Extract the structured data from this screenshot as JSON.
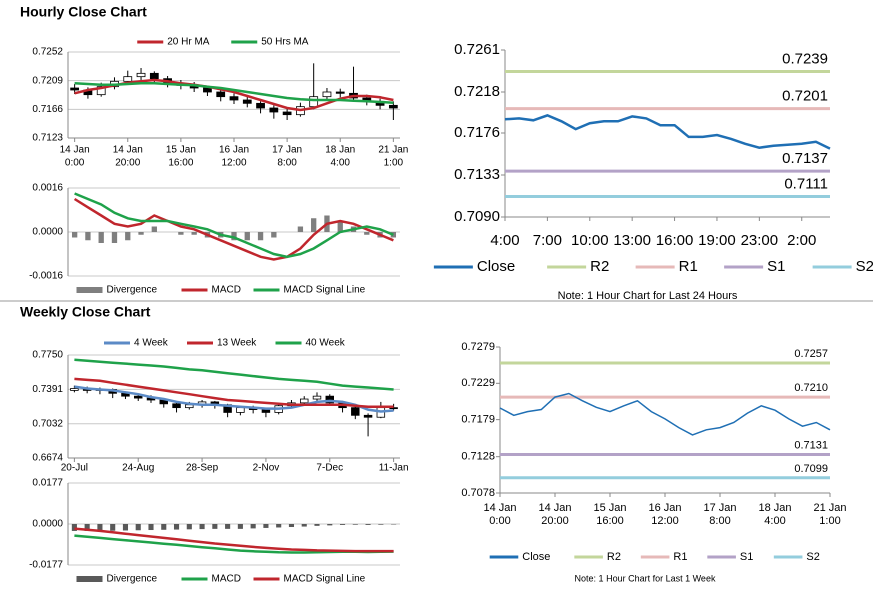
{
  "sections": [
    "Hourly Close Chart",
    "Weekly Close Chart"
  ],
  "chart_data": [
    {
      "type": "candlestick",
      "categories": [
        [
          "14 Jan",
          "0:00"
        ],
        null,
        null,
        null,
        [
          "14 Jan",
          "20:00"
        ],
        null,
        null,
        null,
        [
          "15 Jan",
          "16:00"
        ],
        null,
        null,
        null,
        [
          "16 Jan",
          "12:00"
        ],
        null,
        null,
        null,
        [
          "17 Jan",
          "8:00"
        ],
        null,
        null,
        null,
        [
          "18 Jan",
          "4:00"
        ],
        null,
        null,
        null,
        [
          "21 Jan",
          "1:00"
        ]
      ],
      "candles": [
        [
          0.7198,
          0.7204,
          0.7189,
          0.7195
        ],
        [
          0.7195,
          0.7199,
          0.7182,
          0.7188
        ],
        [
          0.7188,
          0.7206,
          0.7185,
          0.72
        ],
        [
          0.72,
          0.7214,
          0.7196,
          0.7208
        ],
        [
          0.7208,
          0.7224,
          0.7204,
          0.7215
        ],
        [
          0.7215,
          0.7228,
          0.721,
          0.722
        ],
        [
          0.722,
          0.7223,
          0.7206,
          0.7212
        ],
        [
          0.7212,
          0.7216,
          0.7199,
          0.7205
        ],
        [
          0.7205,
          0.721,
          0.7196,
          0.7202
        ],
        [
          0.7202,
          0.7207,
          0.7192,
          0.7198
        ],
        [
          0.7198,
          0.7201,
          0.7186,
          0.7192
        ],
        [
          0.7192,
          0.7196,
          0.7178,
          0.7185
        ],
        [
          0.7185,
          0.719,
          0.7174,
          0.718
        ],
        [
          0.718,
          0.7186,
          0.7169,
          0.7175
        ],
        [
          0.7175,
          0.7178,
          0.716,
          0.7168
        ],
        [
          0.7168,
          0.7172,
          0.7152,
          0.7162
        ],
        [
          0.7162,
          0.7168,
          0.715,
          0.7158
        ],
        [
          0.7158,
          0.7176,
          0.7155,
          0.717
        ],
        [
          0.717,
          0.7235,
          0.7166,
          0.7185
        ],
        [
          0.7185,
          0.7198,
          0.718,
          0.7192
        ],
        [
          0.7192,
          0.7197,
          0.7184,
          0.719
        ],
        [
          0.719,
          0.723,
          0.7178,
          0.7183
        ],
        [
          0.7183,
          0.7188,
          0.7172,
          0.7178
        ],
        [
          0.7178,
          0.7182,
          0.7166,
          0.7172
        ],
        [
          0.7172,
          0.7178,
          0.715,
          0.7168
        ]
      ],
      "series": [
        {
          "name": "20 Hr MA",
          "color": "#c0262d",
          "values": [
            0.719,
            0.7195,
            0.7198,
            0.7202,
            0.7206,
            0.7208,
            0.721,
            0.7208,
            0.7205,
            0.7203,
            0.72,
            0.7196,
            0.7192,
            0.7186,
            0.718,
            0.7174,
            0.7168,
            0.7165,
            0.7168,
            0.7175,
            0.7182,
            0.7186,
            0.7186,
            0.7184,
            0.718
          ]
        },
        {
          "name": "50 Hrs MA",
          "color": "#1fa24a",
          "values": [
            0.7205,
            0.7204,
            0.7203,
            0.7203,
            0.7204,
            0.7205,
            0.7205,
            0.7204,
            0.7203,
            0.7202,
            0.72,
            0.7198,
            0.7195,
            0.7192,
            0.7189,
            0.7186,
            0.7183,
            0.7181,
            0.718,
            0.718,
            0.718,
            0.7179,
            0.7178,
            0.7177,
            0.7176
          ]
        }
      ],
      "ylim": [
        0.7123,
        0.7252
      ],
      "yticks": [
        0.7123,
        0.7166,
        0.7209,
        0.7252
      ],
      "grid": true,
      "legend": "top"
    },
    {
      "type": "macd",
      "series": [
        {
          "name": "Divergence",
          "color": "#7f7f7f",
          "style": "bar",
          "values": [
            -0.0002,
            -0.0003,
            -0.0004,
            -0.0004,
            -0.0003,
            -0.0001,
            0.0002,
            0,
            -0.0001,
            -0.0001,
            -0.0002,
            -0.0002,
            -0.0003,
            -0.0003,
            -0.0003,
            -0.0002,
            0,
            0.0002,
            0.0005,
            0.0006,
            0.0004,
            0.0002,
            -0.0001,
            -0.0002,
            -0.0002
          ]
        },
        {
          "name": "MACD",
          "color": "#c0262d",
          "style": "line",
          "values": [
            0.0012,
            0.0009,
            0.0006,
            0.0003,
            0.0002,
            0.0003,
            0.0006,
            0.0004,
            0.0002,
            0.0001,
            -0.0001,
            -0.0003,
            -0.0005,
            -0.0007,
            -0.0009,
            -0.001,
            -0.0009,
            -0.0006,
            -0.0001,
            0.0003,
            0.0004,
            0.0003,
            0.0001,
            -0.0001,
            -0.0003
          ]
        },
        {
          "name": "MACD Signal Line",
          "color": "#1fa24a",
          "style": "line",
          "values": [
            0.0014,
            0.0012,
            0.001,
            0.0007,
            0.0005,
            0.0004,
            0.0004,
            0.0004,
            0.0003,
            0.0002,
            0.0001,
            -0.0001,
            -0.0002,
            -0.0004,
            -0.0006,
            -0.0008,
            -0.0009,
            -0.0008,
            -0.0006,
            -0.0003,
            0,
            0.0001,
            0.0002,
            0.0001,
            -0.0001
          ]
        }
      ],
      "ylim": [
        -0.0016,
        0.0016
      ],
      "yticks": [
        {
          "value": -0.0016,
          "label": "-0.0016"
        },
        {
          "value": 0,
          "label": "0.0000"
        },
        0.0016
      ],
      "grid": true,
      "legend": "bottom"
    },
    {
      "type": "line",
      "categories": [
        "4:00",
        null,
        null,
        "7:00",
        null,
        null,
        "10:00",
        null,
        null,
        "13:00",
        null,
        null,
        "16:00",
        null,
        null,
        "19:00",
        null,
        null,
        "23:00",
        null,
        null,
        "2:00",
        null,
        null
      ],
      "series": [
        {
          "name": "Close",
          "color": "#1f6fb4",
          "values": [
            0.719,
            0.7191,
            0.7189,
            0.7194,
            0.7188,
            0.718,
            0.7186,
            0.7188,
            0.7188,
            0.7193,
            0.7191,
            0.7184,
            0.7184,
            0.7172,
            0.7172,
            0.7174,
            0.717,
            0.7165,
            0.7161,
            0.7163,
            0.7164,
            0.7165,
            0.7167,
            0.716
          ]
        }
      ],
      "levels": [
        {
          "name": "R2",
          "color": "#c3d69b",
          "value": 0.7239,
          "value_label": "0.7239"
        },
        {
          "name": "R1",
          "color": "#e6b9b8",
          "value": 0.7201,
          "value_label": "0.7201"
        },
        {
          "name": "S1",
          "color": "#b3a2c7",
          "value": 0.7137,
          "value_label": "0.7137"
        },
        {
          "name": "S2",
          "color": "#93cddd",
          "value": 0.7111,
          "value_label": "0.7111"
        }
      ],
      "ylim": [
        0.709,
        0.7261
      ],
      "yticks": [
        {
          "value": 0.709,
          "label": "0.7090"
        },
        0.7133,
        0.7176,
        0.7218,
        0.7261
      ],
      "grid": false,
      "legend": "bottom",
      "note": "Note: 1 Hour Chart for Last 24 Hours"
    },
    {
      "type": "candlestick",
      "categories": [
        "20-Jul",
        null,
        null,
        null,
        null,
        "24-Aug",
        null,
        null,
        null,
        null,
        "28-Sep",
        null,
        null,
        null,
        null,
        "2-Nov",
        null,
        null,
        null,
        null,
        "7-Dec",
        null,
        null,
        null,
        null,
        "11-Jan"
      ],
      "candles": [
        [
          0.738,
          0.743,
          0.736,
          0.74
        ],
        [
          0.74,
          0.742,
          0.735,
          0.738
        ],
        [
          0.738,
          0.741,
          0.734,
          0.739
        ],
        [
          0.739,
          0.74,
          0.73,
          0.735
        ],
        [
          0.735,
          0.737,
          0.729,
          0.732
        ],
        [
          0.732,
          0.734,
          0.727,
          0.73
        ],
        [
          0.73,
          0.733,
          0.725,
          0.728
        ],
        [
          0.728,
          0.73,
          0.72,
          0.724
        ],
        [
          0.724,
          0.726,
          0.715,
          0.72
        ],
        [
          0.72,
          0.726,
          0.718,
          0.723
        ],
        [
          0.723,
          0.728,
          0.72,
          0.726
        ],
        [
          0.726,
          0.727,
          0.719,
          0.723
        ],
        [
          0.723,
          0.724,
          0.71,
          0.715
        ],
        [
          0.715,
          0.722,
          0.712,
          0.72
        ],
        [
          0.72,
          0.722,
          0.714,
          0.718
        ],
        [
          0.718,
          0.719,
          0.71,
          0.715
        ],
        [
          0.715,
          0.724,
          0.713,
          0.722
        ],
        [
          0.722,
          0.728,
          0.72,
          0.725
        ],
        [
          0.725,
          0.732,
          0.723,
          0.729
        ],
        [
          0.729,
          0.736,
          0.727,
          0.732
        ],
        [
          0.732,
          0.734,
          0.722,
          0.725
        ],
        [
          0.725,
          0.727,
          0.715,
          0.72
        ],
        [
          0.72,
          0.722,
          0.708,
          0.712
        ],
        [
          0.712,
          0.714,
          0.69,
          0.71
        ],
        [
          0.71,
          0.726,
          0.709,
          0.72
        ],
        [
          0.72,
          0.724,
          0.717,
          0.719
        ]
      ],
      "series": [
        {
          "name": "4 Week",
          "color": "#5b8ac6",
          "values": [
            0.742,
            0.74,
            0.739,
            0.738,
            0.736,
            0.734,
            0.731,
            0.729,
            0.726,
            0.724,
            0.723,
            0.723,
            0.722,
            0.721,
            0.72,
            0.719,
            0.719,
            0.72,
            0.723,
            0.726,
            0.727,
            0.726,
            0.723,
            0.718,
            0.716,
            0.717
          ]
        },
        {
          "name": "13 Week",
          "color": "#c0262d",
          "values": [
            0.75,
            0.749,
            0.748,
            0.746,
            0.744,
            0.742,
            0.74,
            0.738,
            0.736,
            0.734,
            0.732,
            0.73,
            0.728,
            0.727,
            0.726,
            0.725,
            0.724,
            0.723,
            0.723,
            0.723,
            0.723,
            0.723,
            0.722,
            0.721,
            0.721,
            0.721
          ]
        },
        {
          "name": "40 Week",
          "color": "#1fa24a",
          "values": [
            0.77,
            0.769,
            0.768,
            0.767,
            0.766,
            0.765,
            0.764,
            0.763,
            0.7615,
            0.76,
            0.759,
            0.7575,
            0.756,
            0.7545,
            0.753,
            0.7515,
            0.75,
            0.749,
            0.748,
            0.747,
            0.745,
            0.743,
            0.742,
            0.741,
            0.74,
            0.739
          ]
        }
      ],
      "ylim": [
        0.6674,
        0.775
      ],
      "yticks": [
        0.6674,
        0.7032,
        0.7391,
        {
          "value": 0.775,
          "label": "0.7750"
        }
      ],
      "grid": true,
      "legend": "top"
    },
    {
      "type": "macd",
      "series": [
        {
          "name": "Divergence",
          "color": "#595959",
          "style": "bar",
          "values": [
            -0.003,
            -0.003,
            -0.003,
            -0.0029,
            -0.0028,
            -0.0027,
            -0.0026,
            -0.0025,
            -0.0024,
            -0.0023,
            -0.0022,
            -0.0021,
            -0.0021,
            -0.0021,
            -0.0019,
            -0.0017,
            -0.0015,
            -0.0013,
            -0.0011,
            -0.0008,
            -0.0006,
            -0.0004,
            -0.0003,
            -0.0004,
            -0.0003,
            -0.0002
          ]
        },
        {
          "name": "MACD",
          "color": "#1fa24a",
          "style": "line",
          "values": [
            -0.005,
            -0.0055,
            -0.006,
            -0.0065,
            -0.007,
            -0.0075,
            -0.008,
            -0.0085,
            -0.009,
            -0.0095,
            -0.01,
            -0.0105,
            -0.011,
            -0.0115,
            -0.0118,
            -0.012,
            -0.0122,
            -0.0123,
            -0.0123,
            -0.0122,
            -0.0121,
            -0.012,
            -0.012,
            -0.0121,
            -0.012,
            -0.0119
          ]
        },
        {
          "name": "MACD Signal Line",
          "color": "#c0262d",
          "style": "line",
          "values": [
            -0.002,
            -0.0025,
            -0.003,
            -0.0036,
            -0.0042,
            -0.0048,
            -0.0054,
            -0.006,
            -0.0066,
            -0.0072,
            -0.0078,
            -0.0084,
            -0.0089,
            -0.0094,
            -0.0099,
            -0.0103,
            -0.0107,
            -0.011,
            -0.0112,
            -0.0114,
            -0.0115,
            -0.0116,
            -0.0117,
            -0.0117,
            -0.0117,
            -0.0117
          ]
        }
      ],
      "ylim": [
        -0.0177,
        0.0177
      ],
      "yticks": [
        -0.0177,
        {
          "value": 0,
          "label": "0.0000"
        },
        0.0177
      ],
      "grid": true,
      "legend": "bottom"
    },
    {
      "type": "line",
      "categories": [
        [
          "14 Jan",
          "0:00"
        ],
        null,
        null,
        null,
        [
          "14 Jan",
          "20:00"
        ],
        null,
        null,
        null,
        [
          "15 Jan",
          "16:00"
        ],
        null,
        null,
        null,
        [
          "16 Jan",
          "12:00"
        ],
        null,
        null,
        null,
        [
          "17 Jan",
          "8:00"
        ],
        null,
        null,
        null,
        [
          "18 Jan",
          "4:00"
        ],
        null,
        null,
        null,
        [
          "21 Jan",
          "1:00"
        ]
      ],
      "series": [
        {
          "name": "Close",
          "color": "#1f6fb4",
          "values": [
            0.7195,
            0.7185,
            0.719,
            0.7193,
            0.721,
            0.7215,
            0.7205,
            0.7196,
            0.719,
            0.7198,
            0.7205,
            0.719,
            0.718,
            0.7168,
            0.7158,
            0.7165,
            0.7168,
            0.7175,
            0.7188,
            0.7198,
            0.7192,
            0.718,
            0.717,
            0.7175,
            0.7165
          ]
        }
      ],
      "levels": [
        {
          "name": "R2",
          "color": "#c3d69b",
          "value": 0.7257,
          "value_label": "0.7257"
        },
        {
          "name": "R1",
          "color": "#e6b9b8",
          "value": 0.721,
          "value_label": "0.7210"
        },
        {
          "name": "S1",
          "color": "#b3a2c7",
          "value": 0.7131,
          "value_label": "0.7131"
        },
        {
          "name": "S2",
          "color": "#93cddd",
          "value": 0.7099,
          "value_label": "0.7099"
        }
      ],
      "ylim": [
        0.7078,
        0.7279
      ],
      "yticks": [
        0.7078,
        0.7128,
        0.7179,
        0.7229,
        0.7279
      ],
      "grid": false,
      "legend": "bottom",
      "note": "Note: 1 Hour Chart for Last 1 Week"
    }
  ]
}
